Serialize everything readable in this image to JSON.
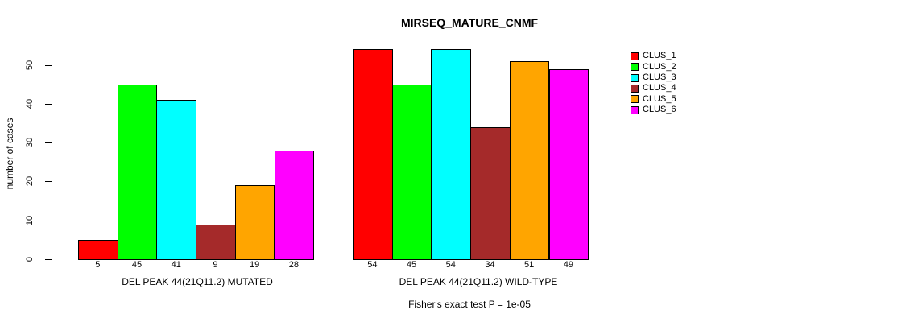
{
  "chart_data": {
    "type": "bar",
    "title": "MIRSEQ_MATURE_CNMF",
    "ylabel": "number of cases",
    "ylim": [
      0,
      50
    ],
    "yticks": [
      0,
      10,
      20,
      30,
      40,
      50
    ],
    "grid": false,
    "legend_position": "right",
    "legend": [
      {
        "label": "CLUS_1",
        "color": "#ff0000"
      },
      {
        "label": "CLUS_2",
        "color": "#00ff00"
      },
      {
        "label": "CLUS_3",
        "color": "#00ffff"
      },
      {
        "label": "CLUS_4",
        "color": "#a52a2a"
      },
      {
        "label": "CLUS_5",
        "color": "#ffa500"
      },
      {
        "label": "CLUS_6",
        "color": "#ff00ff"
      }
    ],
    "panels": [
      {
        "xlabel": "DEL PEAK 44(21Q11.2) MUTATED",
        "categories": [
          "CLUS_1",
          "CLUS_2",
          "CLUS_3",
          "CLUS_4",
          "CLUS_5",
          "CLUS_6"
        ],
        "values": [
          5,
          45,
          41,
          9,
          19,
          28
        ]
      },
      {
        "xlabel": "DEL PEAK 44(21Q11.2) WILD-TYPE",
        "categories": [
          "CLUS_1",
          "CLUS_2",
          "CLUS_3",
          "CLUS_4",
          "CLUS_5",
          "CLUS_6"
        ],
        "values": [
          54,
          45,
          54,
          34,
          51,
          49
        ]
      }
    ],
    "annotation": "Fisher's exact test P = 1e-05",
    "background": "#ffffff"
  }
}
